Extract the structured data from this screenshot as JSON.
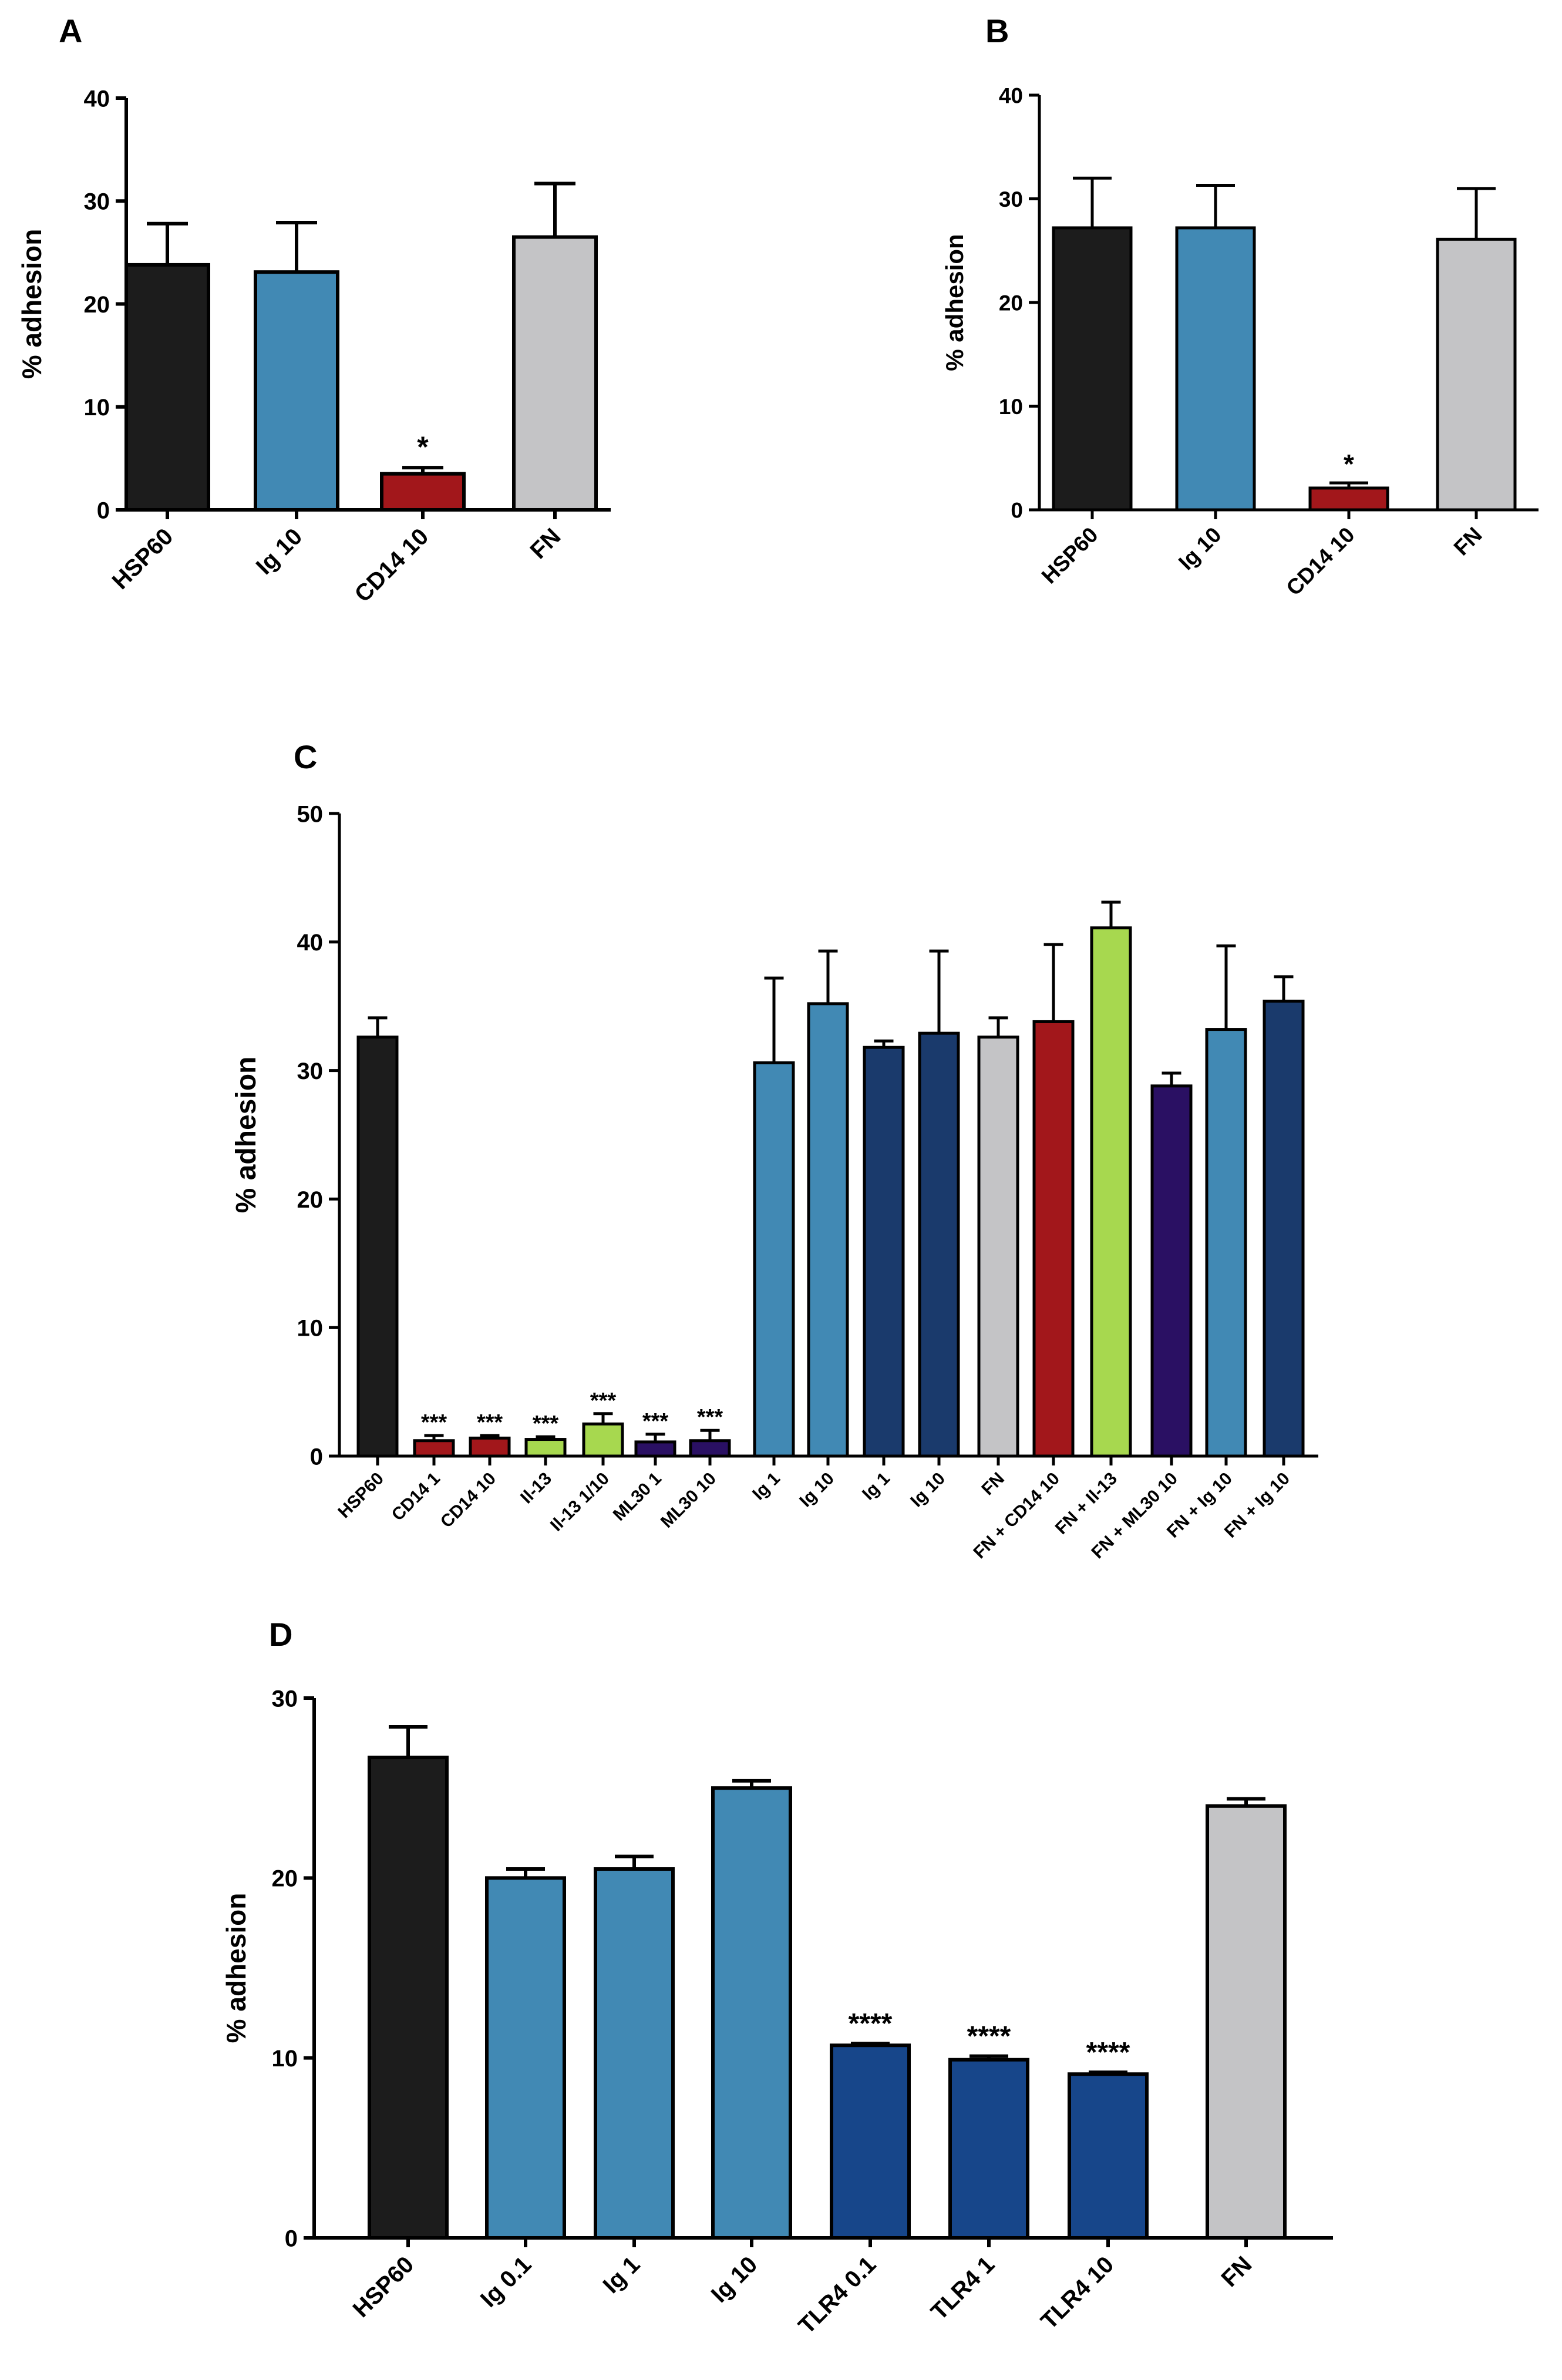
{
  "figure": {
    "colors": {
      "black": "#1c1c1c",
      "light_blue": "#4189b4",
      "dark_red": "#a2171b",
      "light_gray": "#c4c4c6",
      "lime_green": "#a7d84f",
      "purple": "#2a1063",
      "navy": "#1a3a6c",
      "royal_blue": "#17468a"
    }
  },
  "chart_data": [
    {
      "panel": "A",
      "type": "bar",
      "ylabel": "% adhesion",
      "ylim": [
        0,
        40
      ],
      "yticks": [
        0,
        10,
        20,
        30,
        40
      ],
      "categories": [
        "HSP60",
        "Ig 10",
        "CD14 10",
        "FN"
      ],
      "values": [
        23.8,
        23.1,
        3.5,
        26.5
      ],
      "errors": [
        4.0,
        4.8,
        0.6,
        5.2
      ],
      "significance": [
        "",
        "",
        "*",
        ""
      ],
      "colors": [
        "#1c1c1c",
        "#4189b4",
        "#a2171b",
        "#c4c4c6"
      ]
    },
    {
      "panel": "B",
      "type": "bar",
      "ylabel": "% adhesion",
      "ylim": [
        0,
        40
      ],
      "yticks": [
        0,
        10,
        20,
        30,
        40
      ],
      "categories": [
        "HSP60",
        "Ig 10",
        "CD14 10",
        "FN"
      ],
      "values": [
        27.2,
        27.2,
        2.1,
        26.1
      ],
      "errors": [
        4.8,
        4.1,
        0.5,
        4.9
      ],
      "significance": [
        "",
        "",
        "*",
        ""
      ],
      "colors": [
        "#1c1c1c",
        "#4189b4",
        "#a2171b",
        "#c4c4c6"
      ]
    },
    {
      "panel": "C",
      "type": "bar",
      "ylabel": "% adhesion",
      "ylim": [
        0,
        50
      ],
      "yticks": [
        0,
        10,
        20,
        30,
        40,
        50
      ],
      "categories": [
        "HSP60",
        "CD14 1",
        "CD14 10",
        "Il-13",
        "Il-13 1/10",
        "ML30 1",
        "ML30 10",
        "Ig 1",
        "Ig 10",
        "Ig 1",
        "Ig 10",
        "FN",
        "FN + CD14 10",
        "FN + Il-13",
        "FN + ML30 10",
        "FN + Ig 10",
        "FN + Ig 10"
      ],
      "values": [
        32.6,
        1.2,
        1.4,
        1.3,
        2.5,
        1.1,
        1.2,
        30.6,
        35.2,
        31.8,
        32.9,
        32.6,
        33.8,
        41.1,
        28.8,
        33.2,
        35.4
      ],
      "errors": [
        1.5,
        0.4,
        0.2,
        0.2,
        0.8,
        0.6,
        0.8,
        6.6,
        4.1,
        0.5,
        6.4,
        1.5,
        6.0,
        2.0,
        1.0,
        6.5,
        1.9
      ],
      "significance": [
        "",
        "***",
        "***",
        "***",
        "***",
        "***",
        "***",
        "",
        "",
        "",
        "",
        "",
        "",
        "",
        "",
        "",
        ""
      ],
      "colors": [
        "#1c1c1c",
        "#a2171b",
        "#a2171b",
        "#a7d84f",
        "#a7d84f",
        "#2a1063",
        "#2a1063",
        "#4189b4",
        "#4189b4",
        "#1a3a6c",
        "#1a3a6c",
        "#c4c4c6",
        "#a2171b",
        "#a7d84f",
        "#2a1063",
        "#4189b4",
        "#1a3a6c"
      ]
    },
    {
      "panel": "D",
      "type": "bar",
      "ylabel": "% adhesion",
      "ylim": [
        0,
        30
      ],
      "yticks": [
        0,
        10,
        20,
        30
      ],
      "categories": [
        "HSP60",
        "Ig 0.1",
        "Ig 1",
        "Ig 10",
        "TLR4 0.1",
        "TLR4 1",
        "TLR4 10",
        "FN"
      ],
      "values": [
        26.7,
        20.0,
        20.5,
        25.0,
        10.7,
        9.9,
        9.1,
        24.0
      ],
      "errors": [
        1.7,
        0.5,
        0.7,
        0.4,
        0.1,
        0.2,
        0.1,
        0.4
      ],
      "significance": [
        "",
        "",
        "",
        "",
        "****",
        "****",
        "****",
        ""
      ],
      "colors": [
        "#1c1c1c",
        "#4189b4",
        "#4189b4",
        "#4189b4",
        "#17468a",
        "#17468a",
        "#17468a",
        "#c4c4c6"
      ]
    }
  ]
}
